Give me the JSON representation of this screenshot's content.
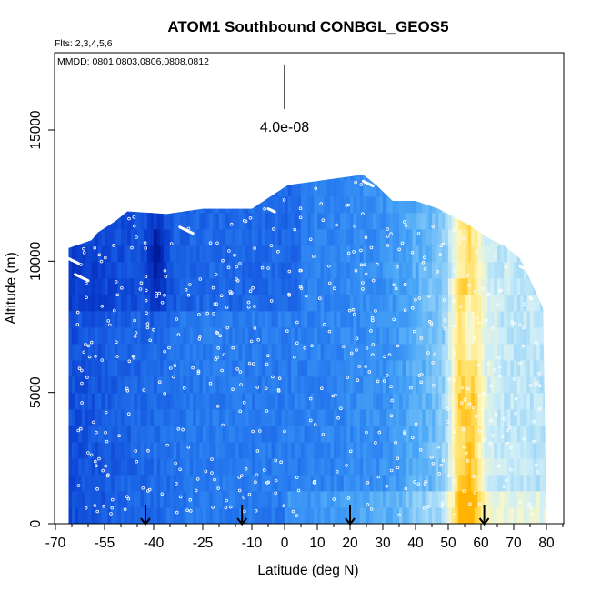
{
  "chart_data": {
    "type": "heatmap",
    "title": "ATOM1 Southbound CONBGL_GEOS5",
    "flights_label": "Flts: 2,3,4,5,6",
    "dates_label": "MMDD: 0801,0803,0806,0808,0812",
    "xlabel": "Latitude (deg N)",
    "ylabel": "Altitude (m)",
    "xlim": [
      -70,
      85
    ],
    "ylim": [
      0,
      17500
    ],
    "x_ticks": [
      -70,
      -55,
      -40,
      -25,
      -10,
      0,
      10,
      20,
      30,
      40,
      50,
      60,
      70,
      80
    ],
    "y_ticks": [
      0,
      5000,
      10000,
      15000
    ],
    "scale_bar": {
      "label": "4.0e-08",
      "x": 0,
      "y_bottom": 15800,
      "y_top": 17500
    },
    "arrow_latitudes": [
      -42.5,
      -13,
      20,
      61
    ],
    "ceiling": [
      [
        -66,
        10500
      ],
      [
        -59,
        10800
      ],
      [
        -57,
        11100
      ],
      [
        -52,
        11500
      ],
      [
        -48,
        11900
      ],
      [
        -36,
        11800
      ],
      [
        -25,
        12000
      ],
      [
        -10,
        12000
      ],
      [
        1,
        12900
      ],
      [
        24,
        13300
      ],
      [
        28,
        12900
      ],
      [
        33,
        12300
      ],
      [
        40,
        12300
      ],
      [
        47,
        12000
      ],
      [
        56,
        11400
      ],
      [
        62,
        10900
      ],
      [
        67,
        10600
      ],
      [
        72,
        10100
      ],
      [
        75,
        9300
      ],
      [
        79,
        8200
      ],
      [
        80,
        0
      ]
    ],
    "color_scale": [
      "#001a9e",
      "#0a3ecf",
      "#1a63e6",
      "#2d84f2",
      "#4aa7f7",
      "#8ccdf8",
      "#cdeef8",
      "#fff8c0",
      "#ffe066",
      "#ffb400"
    ],
    "hotspots": [
      {
        "lat": 55.5,
        "alt": 5500,
        "value": 0.95
      },
      {
        "lat": 54.5,
        "alt": 3000,
        "value": 0.9
      },
      {
        "lat": 56.5,
        "alt": 7500,
        "value": 0.75
      },
      {
        "lat": -39,
        "alt": 10000,
        "value": 0.0
      }
    ]
  }
}
